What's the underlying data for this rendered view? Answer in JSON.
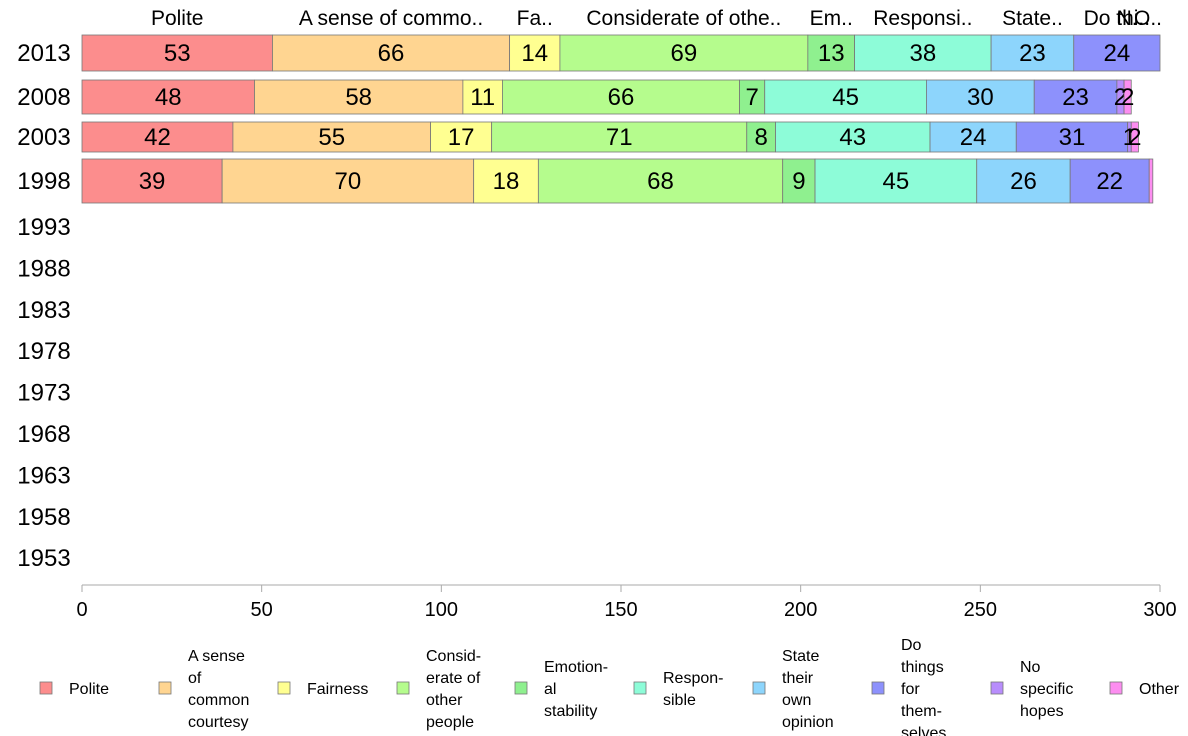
{
  "chart_data": {
    "type": "bar",
    "orientation": "horizontal",
    "stacked": true,
    "categories": [
      "2013",
      "2008",
      "2003",
      "1998",
      "1993",
      "1988",
      "1983",
      "1978",
      "1973",
      "1968",
      "1963",
      "1958",
      "1953"
    ],
    "series": [
      {
        "name": "Polite",
        "color": "#fc8d8d",
        "values": [
          53,
          48,
          42,
          39,
          0,
          0,
          0,
          0,
          0,
          0,
          0,
          0,
          0
        ]
      },
      {
        "name": "A sense of common courtesy",
        "color": "#ffd591",
        "values": [
          66,
          58,
          55,
          70,
          0,
          0,
          0,
          0,
          0,
          0,
          0,
          0,
          0
        ]
      },
      {
        "name": "Fairness",
        "color": "#ffff91",
        "values": [
          14,
          11,
          17,
          18,
          0,
          0,
          0,
          0,
          0,
          0,
          0,
          0,
          0
        ]
      },
      {
        "name": "Considerate of other people",
        "color": "#b5fc8d",
        "values": [
          69,
          66,
          71,
          68,
          0,
          0,
          0,
          0,
          0,
          0,
          0,
          0,
          0
        ]
      },
      {
        "name": "Emotional stability",
        "color": "#8ff08f",
        "values": [
          13,
          7,
          8,
          9,
          0,
          0,
          0,
          0,
          0,
          0,
          0,
          0,
          0
        ]
      },
      {
        "name": "Responsible",
        "color": "#8dfcd8",
        "values": [
          38,
          45,
          43,
          45,
          0,
          0,
          0,
          0,
          0,
          0,
          0,
          0,
          0
        ]
      },
      {
        "name": "State their own opinion",
        "color": "#8dd5fc",
        "values": [
          23,
          30,
          24,
          26,
          0,
          0,
          0,
          0,
          0,
          0,
          0,
          0,
          0
        ]
      },
      {
        "name": "Do things for themselves",
        "color": "#8d91fc",
        "values": [
          24,
          23,
          31,
          22,
          0,
          0,
          0,
          0,
          0,
          0,
          0,
          0,
          0
        ]
      },
      {
        "name": "No specific hopes",
        "color": "#b88dfc",
        "values": [
          0,
          2,
          1,
          0,
          0,
          0,
          0,
          0,
          0,
          0,
          0,
          0,
          0
        ]
      },
      {
        "name": "Other",
        "color": "#fc8df0",
        "values": [
          0,
          2,
          2,
          1,
          0,
          0,
          0,
          0,
          0,
          0,
          0,
          0,
          0
        ]
      }
    ],
    "top_labels": [
      "Polite",
      "A sense of commo..",
      "Fa..",
      "Considerate of othe..",
      "Em..",
      "Responsi..",
      "State..",
      "Do thi..",
      "N..",
      "O.."
    ],
    "segment_labels": {
      "2013": [
        "53",
        "66",
        "14",
        "69",
        "13",
        "38",
        "23",
        "24",
        "",
        ""
      ],
      "2008": [
        "48",
        "58",
        "11",
        "66",
        "7",
        "45",
        "30",
        "23",
        "2",
        "2"
      ],
      "2003": [
        "42",
        "55",
        "17",
        "71",
        "8",
        "43",
        "24",
        "31",
        "1",
        "2"
      ],
      "1998": [
        "39",
        "70",
        "18",
        "68",
        "9",
        "45",
        "26",
        "22",
        "",
        ""
      ]
    },
    "legend": [
      [
        "Polite"
      ],
      [
        "A sense",
        "of",
        "common",
        "courtesy"
      ],
      [
        "Fairness"
      ],
      [
        "Consid-",
        "erate of",
        "other",
        "people"
      ],
      [
        "Emotion-",
        "al",
        "stability"
      ],
      [
        "Respon-",
        "sible"
      ],
      [
        "State",
        "their",
        "own",
        "opinion"
      ],
      [
        "Do",
        "things",
        "for",
        "them-",
        "selves"
      ],
      [
        "No",
        "specific",
        "hopes"
      ],
      [
        "Other"
      ]
    ],
    "xlim": [
      0,
      300
    ],
    "xticks": [
      0,
      50,
      100,
      150,
      200,
      250,
      300
    ],
    "legend_position": "bottom",
    "grid": false
  }
}
